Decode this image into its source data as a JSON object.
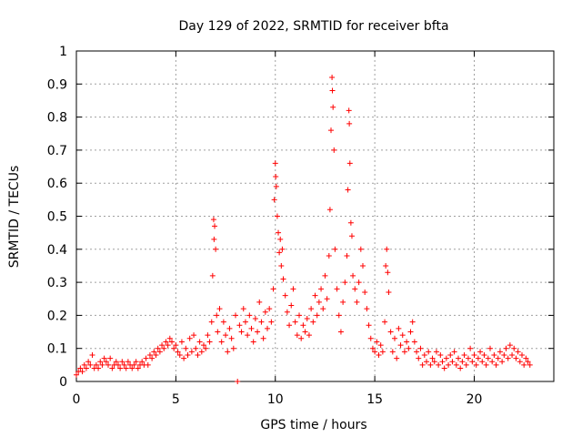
{
  "chart_data": {
    "type": "scatter",
    "title": "Day 129 of 2022, SRMTID for receiver bfta",
    "xlabel": "GPS time / hours",
    "ylabel": "SRMTID / TECUs",
    "xlim": [
      0,
      24
    ],
    "ylim": [
      0,
      1
    ],
    "xticks": [
      0,
      5,
      10,
      15,
      20
    ],
    "yticks": [
      0,
      0.1,
      0.2,
      0.3,
      0.4,
      0.5,
      0.6,
      0.7,
      0.8,
      0.9,
      1
    ],
    "xtick_labels": [
      "0",
      "5",
      "10",
      "15",
      "20"
    ],
    "ytick_labels": [
      "0",
      "0.1",
      "0.2",
      "0.3",
      "0.4",
      "0.5",
      "0.6",
      "0.7",
      "0.8",
      "0.9",
      "1"
    ],
    "grid": true,
    "marker": "+",
    "color": "#ff0000",
    "series": [
      {
        "name": "SRMTID",
        "points": [
          [
            0.0,
            0.02
          ],
          [
            0.1,
            0.03
          ],
          [
            0.2,
            0.04
          ],
          [
            0.3,
            0.03
          ],
          [
            0.4,
            0.05
          ],
          [
            0.5,
            0.04
          ],
          [
            0.6,
            0.06
          ],
          [
            0.7,
            0.05
          ],
          [
            0.8,
            0.08
          ],
          [
            0.9,
            0.04
          ],
          [
            1.0,
            0.05
          ],
          [
            1.1,
            0.04
          ],
          [
            1.2,
            0.06
          ],
          [
            1.3,
            0.05
          ],
          [
            1.4,
            0.07
          ],
          [
            1.5,
            0.06
          ],
          [
            1.6,
            0.05
          ],
          [
            1.7,
            0.07
          ],
          [
            1.8,
            0.04
          ],
          [
            1.9,
            0.05
          ],
          [
            2.0,
            0.06
          ],
          [
            2.1,
            0.05
          ],
          [
            2.2,
            0.04
          ],
          [
            2.3,
            0.06
          ],
          [
            2.4,
            0.05
          ],
          [
            2.5,
            0.04
          ],
          [
            2.6,
            0.06
          ],
          [
            2.7,
            0.05
          ],
          [
            2.8,
            0.04
          ],
          [
            2.9,
            0.05
          ],
          [
            3.0,
            0.06
          ],
          [
            3.1,
            0.04
          ],
          [
            3.2,
            0.05
          ],
          [
            3.3,
            0.06
          ],
          [
            3.4,
            0.05
          ],
          [
            3.5,
            0.07
          ],
          [
            3.6,
            0.05
          ],
          [
            3.7,
            0.08
          ],
          [
            3.8,
            0.07
          ],
          [
            3.9,
            0.09
          ],
          [
            4.0,
            0.08
          ],
          [
            4.1,
            0.1
          ],
          [
            4.2,
            0.09
          ],
          [
            4.3,
            0.11
          ],
          [
            4.4,
            0.1
          ],
          [
            4.5,
            0.12
          ],
          [
            4.6,
            0.11
          ],
          [
            4.7,
            0.13
          ],
          [
            4.8,
            0.12
          ],
          [
            4.9,
            0.1
          ],
          [
            5.0,
            0.11
          ],
          [
            5.1,
            0.09
          ],
          [
            5.2,
            0.08
          ],
          [
            5.3,
            0.12
          ],
          [
            5.4,
            0.07
          ],
          [
            5.5,
            0.1
          ],
          [
            5.6,
            0.08
          ],
          [
            5.7,
            0.13
          ],
          [
            5.8,
            0.09
          ],
          [
            5.9,
            0.14
          ],
          [
            6.0,
            0.1
          ],
          [
            6.1,
            0.08
          ],
          [
            6.2,
            0.12
          ],
          [
            6.3,
            0.09
          ],
          [
            6.4,
            0.11
          ],
          [
            6.5,
            0.1
          ],
          [
            6.6,
            0.14
          ],
          [
            6.7,
            0.12
          ],
          [
            6.8,
            0.18
          ],
          [
            6.85,
            0.32
          ],
          [
            6.9,
            0.49
          ],
          [
            6.92,
            0.43
          ],
          [
            6.95,
            0.47
          ],
          [
            7.0,
            0.4
          ],
          [
            7.05,
            0.2
          ],
          [
            7.1,
            0.15
          ],
          [
            7.2,
            0.22
          ],
          [
            7.3,
            0.12
          ],
          [
            7.4,
            0.18
          ],
          [
            7.5,
            0.14
          ],
          [
            7.6,
            0.09
          ],
          [
            7.7,
            0.16
          ],
          [
            7.8,
            0.13
          ],
          [
            7.9,
            0.1
          ],
          [
            8.0,
            0.2
          ],
          [
            8.1,
            0.0
          ],
          [
            8.2,
            0.17
          ],
          [
            8.3,
            0.15
          ],
          [
            8.4,
            0.22
          ],
          [
            8.5,
            0.18
          ],
          [
            8.6,
            0.14
          ],
          [
            8.7,
            0.2
          ],
          [
            8.8,
            0.16
          ],
          [
            8.9,
            0.12
          ],
          [
            9.0,
            0.19
          ],
          [
            9.1,
            0.15
          ],
          [
            9.2,
            0.24
          ],
          [
            9.3,
            0.18
          ],
          [
            9.4,
            0.13
          ],
          [
            9.5,
            0.21
          ],
          [
            9.6,
            0.16
          ],
          [
            9.7,
            0.22
          ],
          [
            9.8,
            0.18
          ],
          [
            9.9,
            0.28
          ],
          [
            9.95,
            0.55
          ],
          [
            10.0,
            0.66
          ],
          [
            10.02,
            0.62
          ],
          [
            10.05,
            0.59
          ],
          [
            10.1,
            0.5
          ],
          [
            10.15,
            0.45
          ],
          [
            10.2,
            0.39
          ],
          [
            10.25,
            0.43
          ],
          [
            10.3,
            0.35
          ],
          [
            10.35,
            0.4
          ],
          [
            10.4,
            0.31
          ],
          [
            10.5,
            0.26
          ],
          [
            10.6,
            0.21
          ],
          [
            10.7,
            0.17
          ],
          [
            10.8,
            0.23
          ],
          [
            10.9,
            0.28
          ],
          [
            11.0,
            0.18
          ],
          [
            11.1,
            0.14
          ],
          [
            11.2,
            0.2
          ],
          [
            11.3,
            0.13
          ],
          [
            11.4,
            0.17
          ],
          [
            11.5,
            0.15
          ],
          [
            11.6,
            0.19
          ],
          [
            11.7,
            0.14
          ],
          [
            11.8,
            0.22
          ],
          [
            11.9,
            0.18
          ],
          [
            12.0,
            0.26
          ],
          [
            12.1,
            0.2
          ],
          [
            12.2,
            0.24
          ],
          [
            12.3,
            0.28
          ],
          [
            12.4,
            0.22
          ],
          [
            12.5,
            0.32
          ],
          [
            12.6,
            0.25
          ],
          [
            12.7,
            0.38
          ],
          [
            12.75,
            0.52
          ],
          [
            12.8,
            0.76
          ],
          [
            12.85,
            0.92
          ],
          [
            12.87,
            0.88
          ],
          [
            12.9,
            0.83
          ],
          [
            12.95,
            0.7
          ],
          [
            13.0,
            0.4
          ],
          [
            13.1,
            0.28
          ],
          [
            13.2,
            0.2
          ],
          [
            13.3,
            0.15
          ],
          [
            13.4,
            0.24
          ],
          [
            13.5,
            0.3
          ],
          [
            13.6,
            0.38
          ],
          [
            13.65,
            0.58
          ],
          [
            13.7,
            0.82
          ],
          [
            13.72,
            0.78
          ],
          [
            13.75,
            0.66
          ],
          [
            13.8,
            0.48
          ],
          [
            13.85,
            0.44
          ],
          [
            13.9,
            0.32
          ],
          [
            14.0,
            0.28
          ],
          [
            14.1,
            0.24
          ],
          [
            14.2,
            0.3
          ],
          [
            14.3,
            0.4
          ],
          [
            14.4,
            0.35
          ],
          [
            14.5,
            0.27
          ],
          [
            14.6,
            0.22
          ],
          [
            14.7,
            0.17
          ],
          [
            14.8,
            0.13
          ],
          [
            14.9,
            0.1
          ],
          [
            15.0,
            0.09
          ],
          [
            15.1,
            0.12
          ],
          [
            15.2,
            0.08
          ],
          [
            15.3,
            0.11
          ],
          [
            15.4,
            0.09
          ],
          [
            15.5,
            0.18
          ],
          [
            15.55,
            0.35
          ],
          [
            15.6,
            0.4
          ],
          [
            15.65,
            0.33
          ],
          [
            15.7,
            0.27
          ],
          [
            15.8,
            0.15
          ],
          [
            15.9,
            0.09
          ],
          [
            16.0,
            0.13
          ],
          [
            16.1,
            0.07
          ],
          [
            16.2,
            0.16
          ],
          [
            16.3,
            0.11
          ],
          [
            16.4,
            0.14
          ],
          [
            16.5,
            0.09
          ],
          [
            16.6,
            0.12
          ],
          [
            16.7,
            0.1
          ],
          [
            16.8,
            0.15
          ],
          [
            16.9,
            0.18
          ],
          [
            17.0,
            0.12
          ],
          [
            17.1,
            0.09
          ],
          [
            17.2,
            0.07
          ],
          [
            17.3,
            0.1
          ],
          [
            17.4,
            0.05
          ],
          [
            17.5,
            0.08
          ],
          [
            17.6,
            0.06
          ],
          [
            17.7,
            0.09
          ],
          [
            17.8,
            0.05
          ],
          [
            17.9,
            0.07
          ],
          [
            18.0,
            0.06
          ],
          [
            18.1,
            0.09
          ],
          [
            18.2,
            0.05
          ],
          [
            18.3,
            0.08
          ],
          [
            18.4,
            0.06
          ],
          [
            18.5,
            0.04
          ],
          [
            18.6,
            0.07
          ],
          [
            18.7,
            0.05
          ],
          [
            18.8,
            0.08
          ],
          [
            18.9,
            0.06
          ],
          [
            19.0,
            0.09
          ],
          [
            19.1,
            0.05
          ],
          [
            19.2,
            0.07
          ],
          [
            19.3,
            0.04
          ],
          [
            19.4,
            0.06
          ],
          [
            19.5,
            0.08
          ],
          [
            19.6,
            0.05
          ],
          [
            19.7,
            0.07
          ],
          [
            19.8,
            0.1
          ],
          [
            19.9,
            0.06
          ],
          [
            20.0,
            0.08
          ],
          [
            20.1,
            0.05
          ],
          [
            20.2,
            0.07
          ],
          [
            20.3,
            0.09
          ],
          [
            20.4,
            0.06
          ],
          [
            20.5,
            0.08
          ],
          [
            20.6,
            0.05
          ],
          [
            20.7,
            0.07
          ],
          [
            20.8,
            0.1
          ],
          [
            20.9,
            0.06
          ],
          [
            21.0,
            0.08
          ],
          [
            21.1,
            0.05
          ],
          [
            21.2,
            0.07
          ],
          [
            21.3,
            0.09
          ],
          [
            21.4,
            0.06
          ],
          [
            21.5,
            0.08
          ],
          [
            21.6,
            0.1
          ],
          [
            21.7,
            0.07
          ],
          [
            21.8,
            0.11
          ],
          [
            21.9,
            0.08
          ],
          [
            22.0,
            0.1
          ],
          [
            22.1,
            0.07
          ],
          [
            22.2,
            0.09
          ],
          [
            22.3,
            0.06
          ],
          [
            22.4,
            0.08
          ],
          [
            22.5,
            0.05
          ],
          [
            22.6,
            0.07
          ],
          [
            22.7,
            0.06
          ],
          [
            22.8,
            0.05
          ]
        ]
      }
    ]
  }
}
